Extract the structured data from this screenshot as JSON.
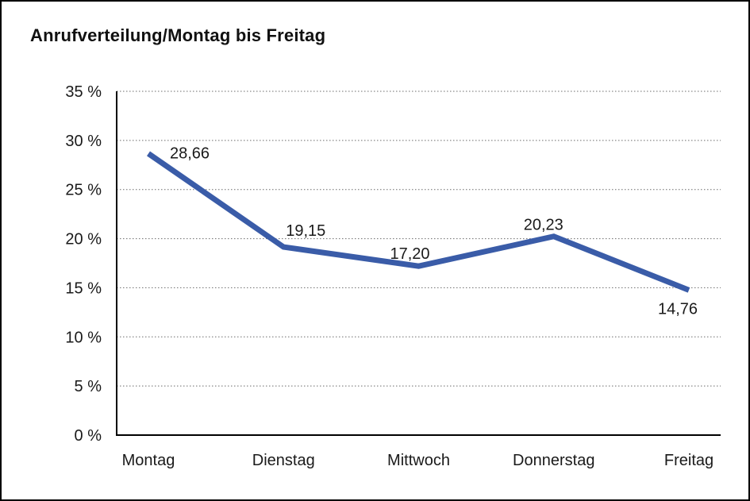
{
  "title": "Anrufverteilung/Montag bis Freitag",
  "chart_data": {
    "type": "line",
    "title": "Anrufverteilung/Montag bis Freitag",
    "categories": [
      "Montag",
      "Dienstag",
      "Mittwoch",
      "Donnerstag",
      "Freitag"
    ],
    "values": [
      28.66,
      19.15,
      17.2,
      20.23,
      14.76
    ],
    "point_labels": [
      "28,66",
      "19,15",
      "17,20",
      "20,23",
      "14,76"
    ],
    "xlabel": "",
    "ylabel": "",
    "ylim": [
      0,
      35
    ],
    "ytick_step": 5,
    "ytick_labels": [
      "0 %",
      "5 %",
      "10 %",
      "15 %",
      "20 %",
      "25 %",
      "30 %",
      "35 %"
    ],
    "grid": "horizontal-dotted",
    "legend": "none",
    "colors": {
      "line": "#3A5CA8",
      "axis": "#000000",
      "gridline": "#6b6b6b",
      "text": "#1a1a1a",
      "background": "#ffffff"
    },
    "line_width": 7
  }
}
